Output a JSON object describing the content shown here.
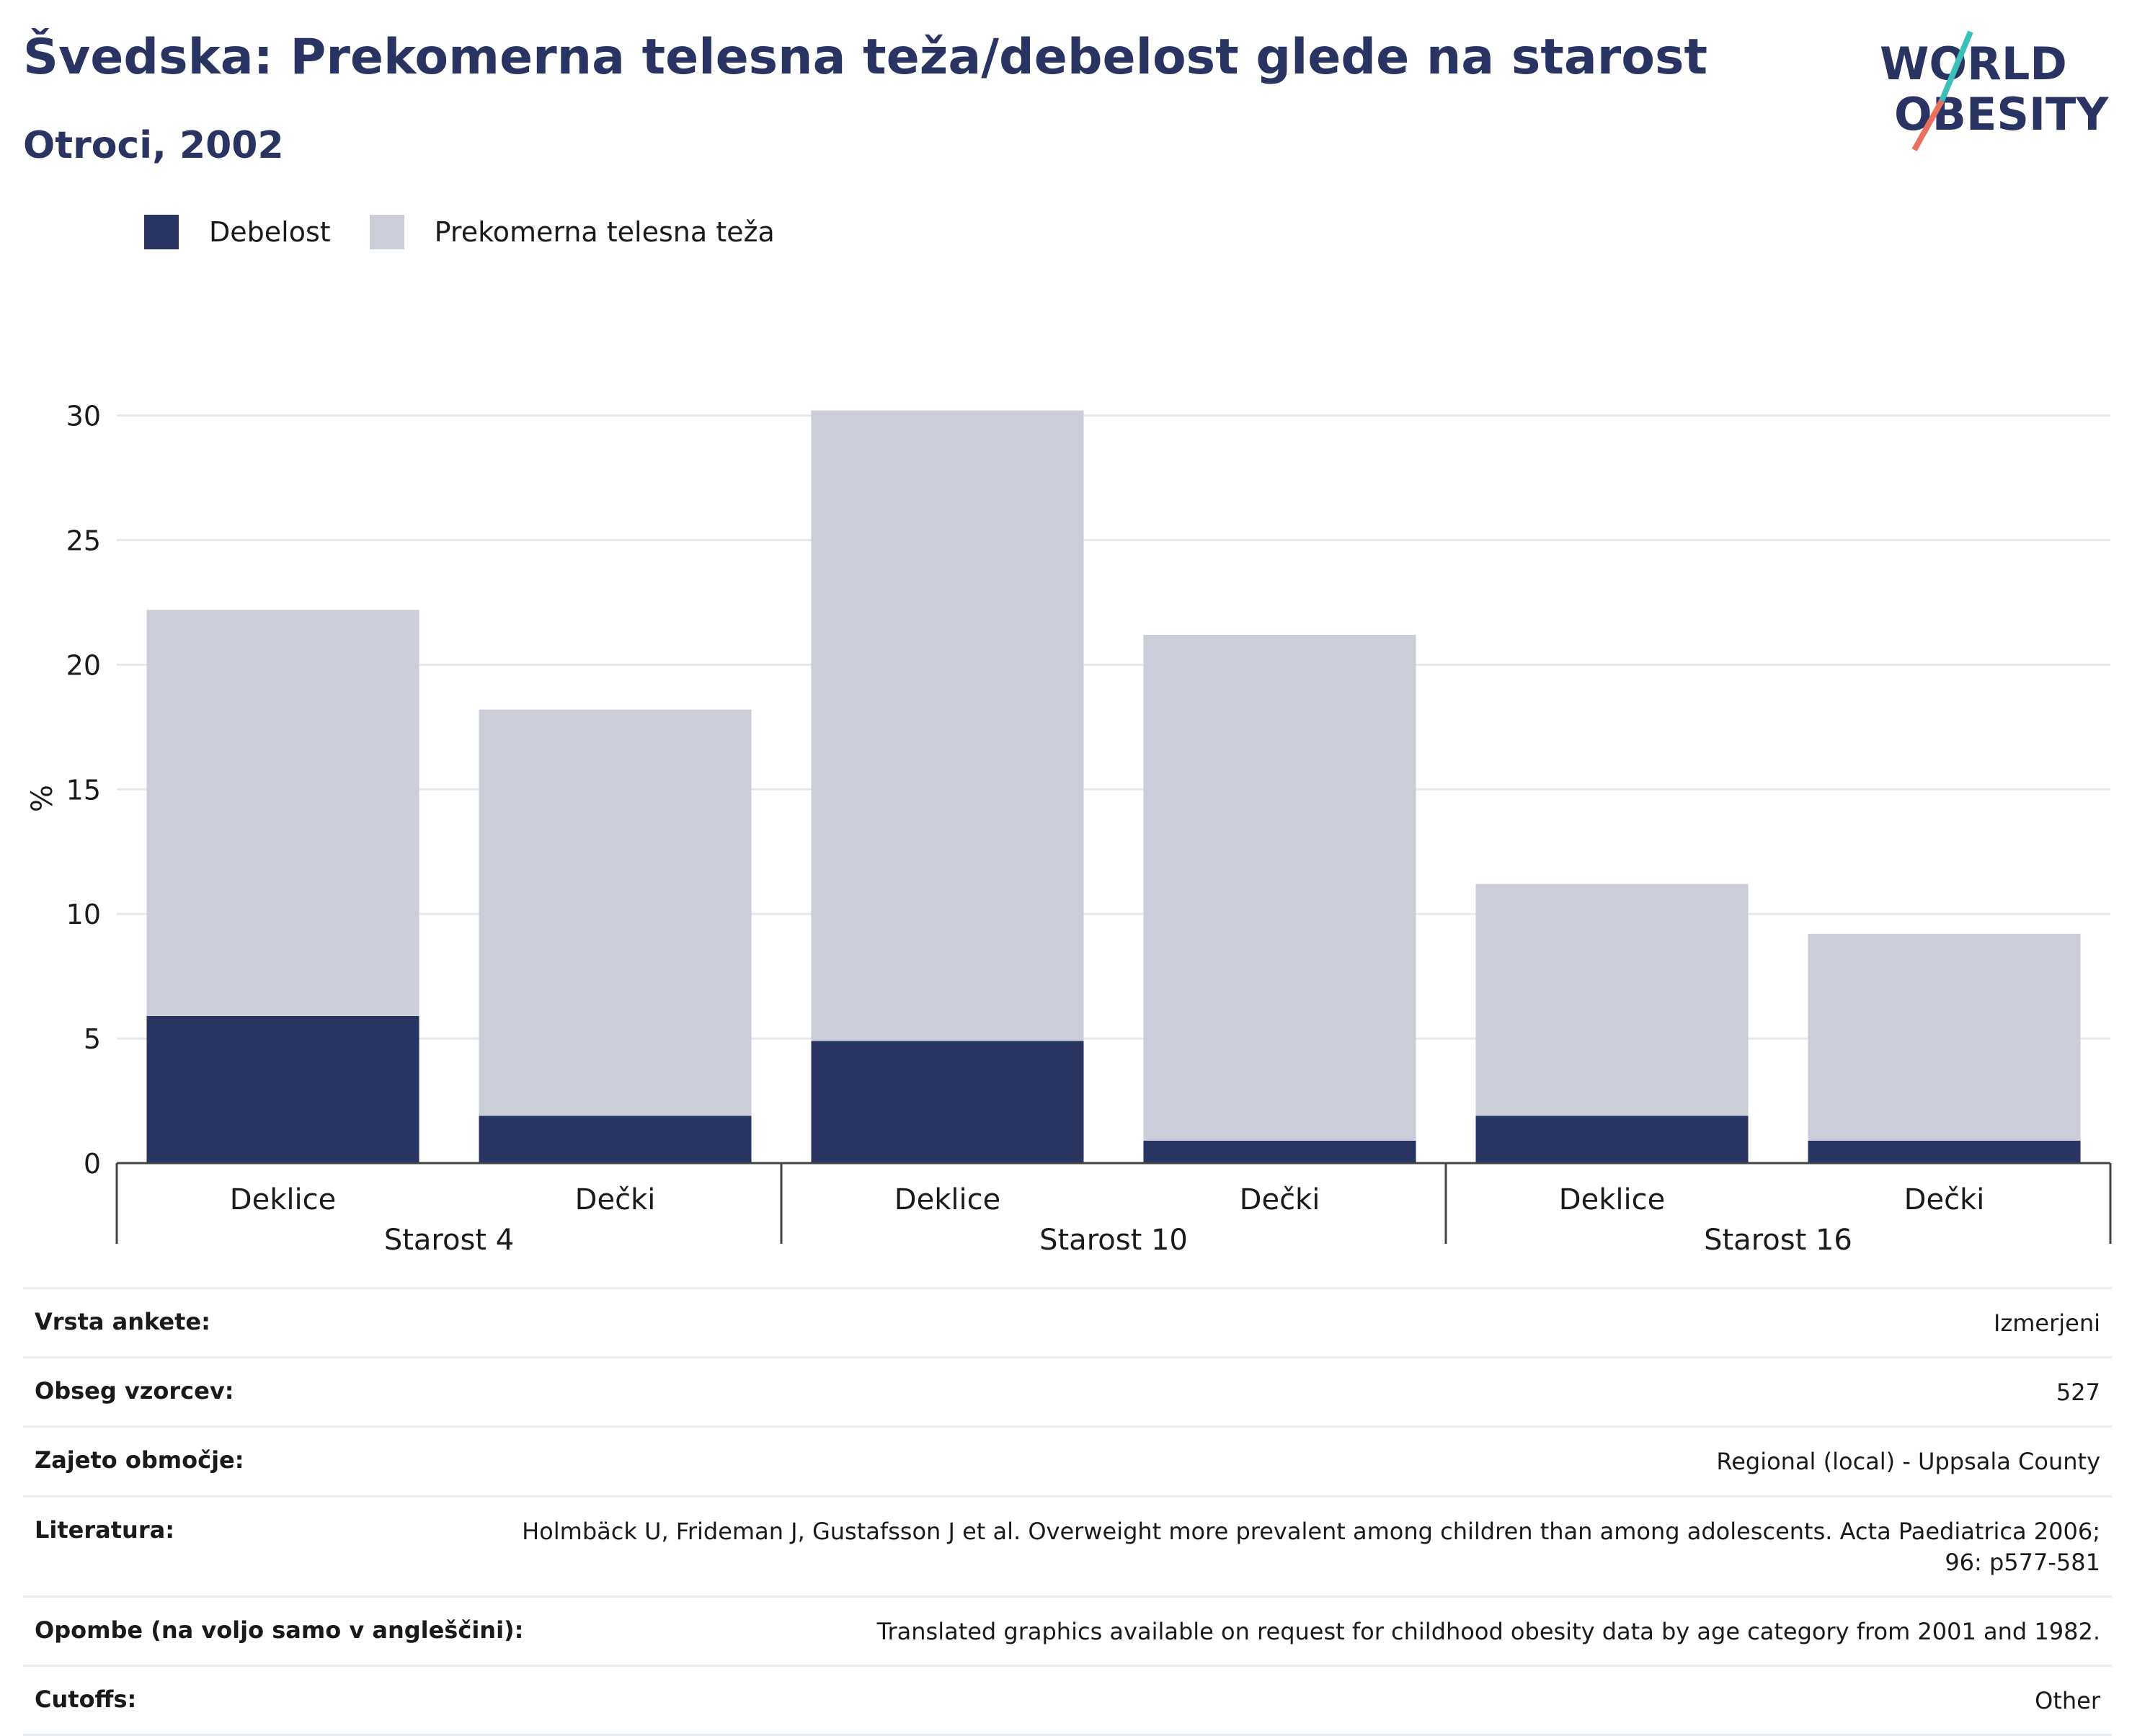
{
  "header": {
    "title": "Švedska: Prekomerna telesna teža/debelost glede na starost",
    "subtitle": "Otroci, 2002",
    "logo_line1": "WORLD",
    "logo_line2": "OBESITY"
  },
  "legend": [
    {
      "label": "Debelost",
      "color": "#293462"
    },
    {
      "label": "Prekomerna telesna teža",
      "color": "#cbcdd8"
    }
  ],
  "chart_data": {
    "type": "bar",
    "stacked": true,
    "ylabel": "%",
    "ylim": [
      0,
      31
    ],
    "yticks": [
      0,
      5,
      10,
      15,
      20,
      25,
      30
    ],
    "grid": true,
    "legend_position": "top-left",
    "groups": [
      {
        "label": "Starost 4",
        "categories": [
          "Deklice",
          "Dečki"
        ]
      },
      {
        "label": "Starost 10",
        "categories": [
          "Deklice",
          "Dečki"
        ]
      },
      {
        "label": "Starost 16",
        "categories": [
          "Deklice",
          "Dečki"
        ]
      }
    ],
    "series": [
      {
        "name": "Debelost",
        "color": "#293462",
        "values": [
          5.9,
          1.9,
          4.9,
          0.9,
          1.9,
          0.9
        ]
      },
      {
        "name": "Prekomerna telesna teža",
        "color": "#cbcdd8",
        "values": [
          16.3,
          16.3,
          25.3,
          20.3,
          9.3,
          8.3
        ]
      }
    ]
  },
  "meta": [
    {
      "label": "Vrsta ankete:",
      "value": "Izmerjeni"
    },
    {
      "label": "Obseg vzorcev:",
      "value": "527"
    },
    {
      "label": "Zajeto območje:",
      "value": "Regional (local) - Uppsala County"
    },
    {
      "label": "Literatura:",
      "value": "Holmbäck U, Frideman J, Gustafsson J et al. Overweight more prevalent among children than among adolescents. Acta Paediatrica 2006; 96: p577-581"
    },
    {
      "label": "Opombe (na voljo samo v angleščini):",
      "value": "Translated graphics available on request for childhood obesity data by age category from 2001 and 1982."
    },
    {
      "label": "Cutoffs:",
      "value": "Other"
    }
  ]
}
